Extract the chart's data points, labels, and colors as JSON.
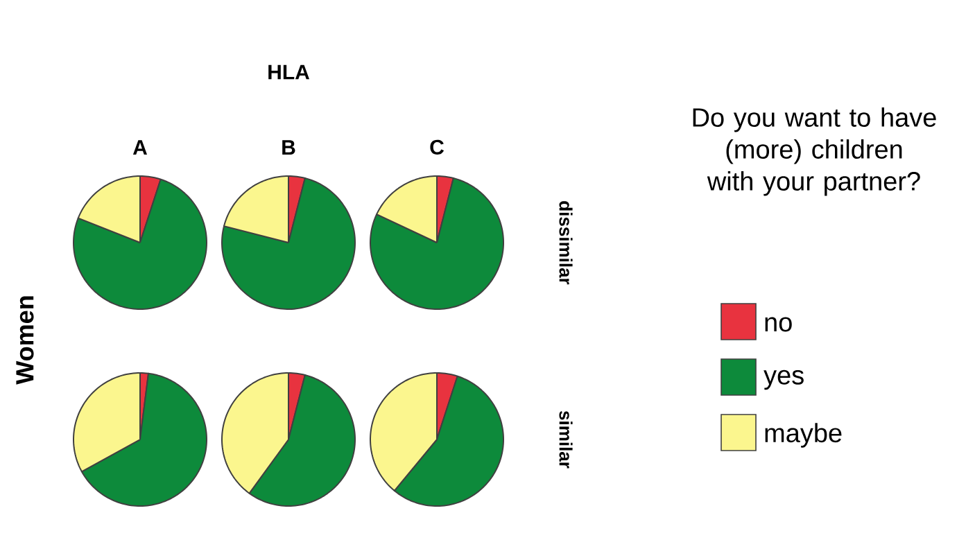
{
  "chart_data": [
    {
      "type": "pie",
      "title": "A",
      "categories": [
        "no",
        "yes",
        "maybe"
      ],
      "values": [
        5,
        76,
        19
      ],
      "colors": [
        "#e8333f",
        "#0d8a3b",
        "#fbf68e"
      ],
      "legend": "right",
      "legend_title": "Do you want to have (more) children with your partner?",
      "annotations": [
        "HLA",
        "Women"
      ]
    },
    {
      "type": "pie",
      "title": "B",
      "categories": [
        null,
        null,
        null
      ],
      "values": [
        4,
        75,
        21
      ],
      "colors": [
        "#e8333f",
        "#0d8a3b",
        "#fbf68e"
      ]
    },
    {
      "type": "pie",
      "title": "C",
      "categories": [
        null,
        null,
        null
      ],
      "values": [
        4,
        78,
        18
      ],
      "colors": [
        "#e8333f",
        "#0d8a3b",
        "#fbf68e"
      ],
      "annotations": [
        "dissimilar"
      ]
    },
    {
      "type": "pie",
      "categories": [
        null,
        null,
        null
      ],
      "values": [
        2,
        65,
        33
      ],
      "colors": [
        "#e8333f",
        "#0d8a3b",
        "#fbf68e"
      ]
    },
    {
      "type": "pie",
      "categories": [
        null,
        null,
        null
      ],
      "values": [
        4,
        56,
        40
      ],
      "colors": [
        "#e8333f",
        "#0d8a3b",
        "#fbf68e"
      ]
    },
    {
      "type": "pie",
      "categories": [
        null,
        null,
        null
      ],
      "values": [
        5,
        56,
        39
      ],
      "colors": [
        "#e8333f",
        "#0d8a3b",
        "#fbf68e"
      ],
      "annotations": [
        "similar"
      ]
    }
  ]
}
